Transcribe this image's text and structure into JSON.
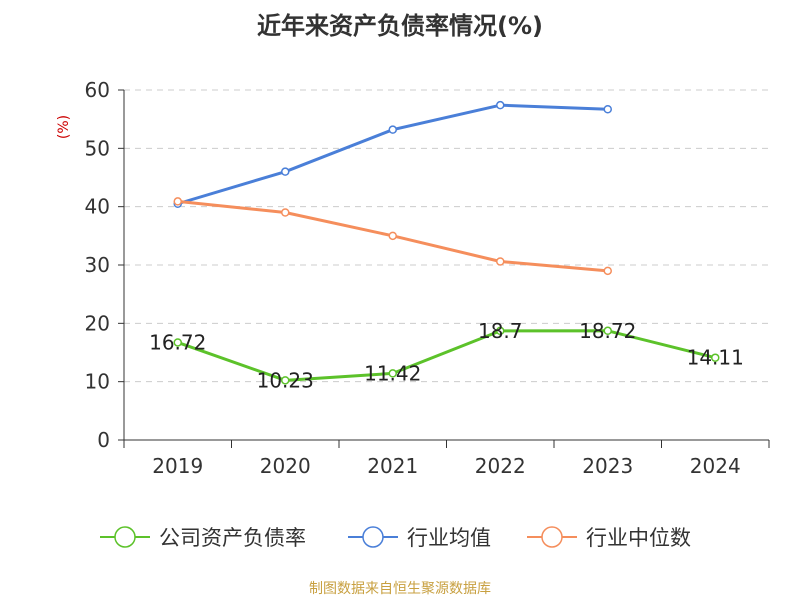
{
  "chart_data": {
    "type": "line",
    "title": "近年来资产负债率情况(%)",
    "ylabel": "(%)",
    "xlabel": "",
    "x": [
      "2019",
      "2020",
      "2021",
      "2022",
      "2023",
      "2024"
    ],
    "ylim": [
      0,
      60
    ],
    "yticks": [
      0,
      10,
      20,
      30,
      40,
      50,
      60
    ],
    "grid": true,
    "legend_position": "bottom",
    "series": [
      {
        "name": "公司资产负债率",
        "color": "#5cc22a",
        "values": [
          16.72,
          10.23,
          11.42,
          18.7,
          18.72,
          14.11
        ],
        "labels": [
          "16.72",
          "10.23",
          "11.42",
          "18.7",
          "18.72",
          "14.11"
        ]
      },
      {
        "name": "行业均值",
        "color": "#4a7fd8",
        "values": [
          40.5,
          46.0,
          53.2,
          57.4,
          56.7,
          null
        ]
      },
      {
        "name": "行业中位数",
        "color": "#f58e5c",
        "values": [
          40.9,
          39.0,
          35.0,
          30.6,
          29.0,
          null
        ]
      }
    ]
  },
  "footer": "制图数据来自恒生聚源数据库"
}
